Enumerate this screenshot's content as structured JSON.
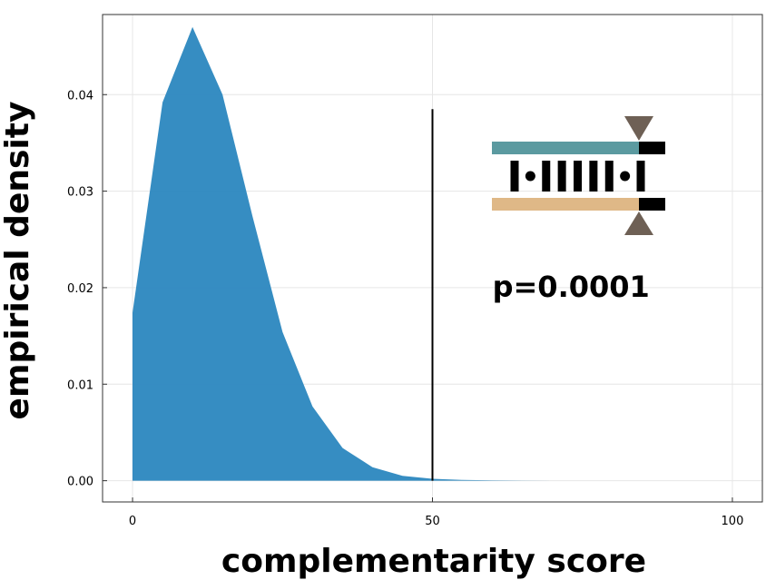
{
  "chart_data": {
    "type": "area",
    "xlabel": "complementarity score",
    "ylabel": "empirical density",
    "xlim": [
      -5,
      105
    ],
    "ylim": [
      -0.0022,
      0.0483
    ],
    "x_ticks": [
      0,
      50,
      100
    ],
    "x_tick_labels": [
      "0",
      "50",
      "100"
    ],
    "y_ticks": [
      0.0,
      0.01,
      0.02,
      0.03,
      0.04
    ],
    "y_tick_labels": [
      "0.00",
      "0.01",
      "0.02",
      "0.03",
      "0.04"
    ],
    "grid": true,
    "series": [
      {
        "color": "#2b87bf",
        "x": [
          0,
          0,
          5,
          10,
          15,
          20,
          25,
          30,
          35,
          40,
          45,
          50,
          55,
          60,
          65,
          70,
          75,
          80,
          85,
          90,
          95,
          100
        ],
        "y": [
          0,
          0.0174,
          0.0392,
          0.047,
          0.04,
          0.0274,
          0.0154,
          0.0077,
          0.0034,
          0.0014,
          0.0005,
          0.0002,
          8e-05,
          3e-05,
          1e-05,
          0,
          0,
          0,
          0,
          0,
          0,
          0
        ]
      }
    ],
    "vline": {
      "x": 50,
      "y_top": 0.0385,
      "color": "#000000"
    },
    "annotation": {
      "text": "p=0.0001",
      "x": 60,
      "y": 0.02
    },
    "icon": {
      "name": "duplex-pairing-icon",
      "top_strand_color": "#5b9aa0",
      "bottom_strand_color": "#dfb887",
      "cap_color": "#000000",
      "triangle_color": "#6e6055",
      "pairs": [
        "bar",
        "dot",
        "bar",
        "bar",
        "bar",
        "bar",
        "bar",
        "dot",
        "bar"
      ]
    }
  }
}
